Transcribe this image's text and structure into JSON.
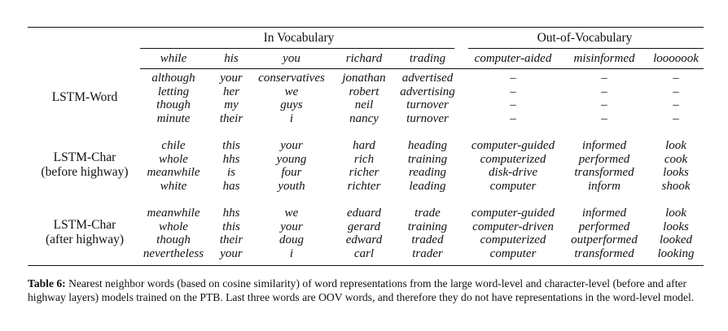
{
  "table": {
    "groups": {
      "in_vocab": "In Vocabulary",
      "oov": "Out-of-Vocabulary"
    },
    "columns": [
      "while",
      "his",
      "you",
      "richard",
      "trading",
      "computer-aided",
      "misinformed",
      "looooook"
    ],
    "rows": [
      {
        "label_lines": [
          "LSTM-Word"
        ],
        "cells": [
          [
            "although",
            "letting",
            "though",
            "minute"
          ],
          [
            "your",
            "her",
            "my",
            "their"
          ],
          [
            "conservatives",
            "we",
            "guys",
            "i"
          ],
          [
            "jonathan",
            "robert",
            "neil",
            "nancy"
          ],
          [
            "advertised",
            "advertising",
            "turnover",
            "turnover"
          ],
          [
            "–",
            "–",
            "–",
            "–"
          ],
          [
            "–",
            "–",
            "–",
            "–"
          ],
          [
            "–",
            "–",
            "–",
            "–"
          ]
        ]
      },
      {
        "label_lines": [
          "LSTM-Char",
          "(before highway)"
        ],
        "cells": [
          [
            "chile",
            "whole",
            "meanwhile",
            "white"
          ],
          [
            "this",
            "hhs",
            "is",
            "has"
          ],
          [
            "your",
            "young",
            "four",
            "youth"
          ],
          [
            "hard",
            "rich",
            "richer",
            "richter"
          ],
          [
            "heading",
            "training",
            "reading",
            "leading"
          ],
          [
            "computer-guided",
            "computerized",
            "disk-drive",
            "computer"
          ],
          [
            "informed",
            "performed",
            "transformed",
            "inform"
          ],
          [
            "look",
            "cook",
            "looks",
            "shook"
          ]
        ]
      },
      {
        "label_lines": [
          "LSTM-Char",
          "(after highway)"
        ],
        "cells": [
          [
            "meanwhile",
            "whole",
            "though",
            "nevertheless"
          ],
          [
            "hhs",
            "this",
            "their",
            "your"
          ],
          [
            "we",
            "your",
            "doug",
            "i"
          ],
          [
            "eduard",
            "gerard",
            "edward",
            "carl"
          ],
          [
            "trade",
            "training",
            "traded",
            "trader"
          ],
          [
            "computer-guided",
            "computer-driven",
            "computerized",
            "computer"
          ],
          [
            "informed",
            "performed",
            "outperformed",
            "transformed"
          ],
          [
            "look",
            "looks",
            "looked",
            "looking"
          ]
        ]
      }
    ]
  },
  "caption": {
    "label": "Table 6:",
    "text": "Nearest neighbor words (based on cosine similarity) of word representations from the large word-level and character-level (before and after highway layers) models trained on the PTB. Last three words are OOV words, and therefore they do not have representations in the word-level model."
  }
}
